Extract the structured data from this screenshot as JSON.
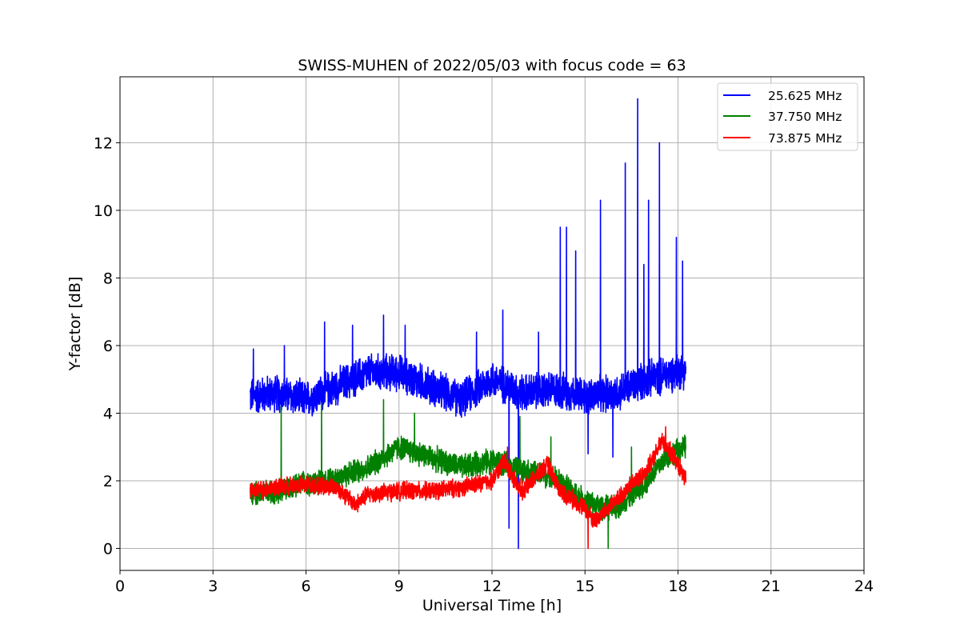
{
  "chart_data": {
    "type": "line",
    "title": "SWISS-MUHEN of 2022/05/03 with focus code = 63",
    "xlabel": "Universal Time [h]",
    "ylabel": "Y-factor [dB]",
    "xlim": [
      0,
      24
    ],
    "ylim": [
      -0.65,
      13.95
    ],
    "xticks": [
      0,
      3,
      6,
      9,
      12,
      15,
      18,
      21,
      24
    ],
    "yticks": [
      0,
      2,
      4,
      6,
      8,
      10,
      12
    ],
    "grid": true,
    "legend_position": "top-right",
    "series": [
      {
        "name": "25.625 MHz",
        "color": "#0000ff",
        "noise_amplitude": 0.45,
        "baseline": [
          [
            4.2,
            4.5
          ],
          [
            5.0,
            4.6
          ],
          [
            6.0,
            4.4
          ],
          [
            7.0,
            4.8
          ],
          [
            8.0,
            5.2
          ],
          [
            9.0,
            5.2
          ],
          [
            10.0,
            4.8
          ],
          [
            11.0,
            4.4
          ],
          [
            12.0,
            5.0
          ],
          [
            13.0,
            4.6
          ],
          [
            14.0,
            4.7
          ],
          [
            15.0,
            4.5
          ],
          [
            16.0,
            4.6
          ],
          [
            17.0,
            5.0
          ],
          [
            18.25,
            5.3
          ]
        ],
        "peaks": [
          [
            4.3,
            5.9
          ],
          [
            5.3,
            6.0
          ],
          [
            6.6,
            6.7
          ],
          [
            7.5,
            6.6
          ],
          [
            8.5,
            6.9
          ],
          [
            9.2,
            6.6
          ],
          [
            11.5,
            6.4
          ],
          [
            12.35,
            7.05
          ],
          [
            12.55,
            0.6
          ],
          [
            12.85,
            0.0
          ],
          [
            13.5,
            6.4
          ],
          [
            14.2,
            9.5
          ],
          [
            14.4,
            9.5
          ],
          [
            14.7,
            8.8
          ],
          [
            15.5,
            10.3
          ],
          [
            15.1,
            2.8
          ],
          [
            15.9,
            2.7
          ],
          [
            16.3,
            11.4
          ],
          [
            16.7,
            13.3
          ],
          [
            16.9,
            8.4
          ],
          [
            17.05,
            10.3
          ],
          [
            17.4,
            12.0
          ],
          [
            17.95,
            9.2
          ],
          [
            18.15,
            8.5
          ]
        ]
      },
      {
        "name": "37.750 MHz",
        "color": "#008000",
        "noise_amplitude": 0.3,
        "baseline": [
          [
            4.2,
            1.6
          ],
          [
            5.0,
            1.7
          ],
          [
            6.0,
            1.9
          ],
          [
            7.0,
            2.1
          ],
          [
            8.0,
            2.4
          ],
          [
            9.0,
            3.0
          ],
          [
            10.0,
            2.7
          ],
          [
            11.0,
            2.4
          ],
          [
            12.0,
            2.6
          ],
          [
            13.0,
            2.3
          ],
          [
            14.0,
            2.1
          ],
          [
            15.0,
            1.4
          ],
          [
            15.6,
            1.2
          ],
          [
            16.0,
            1.2
          ],
          [
            17.0,
            2.0
          ],
          [
            17.6,
            2.7
          ],
          [
            18.25,
            3.0
          ]
        ],
        "peaks": [
          [
            5.2,
            4.2
          ],
          [
            6.5,
            4.3
          ],
          [
            8.5,
            4.4
          ],
          [
            9.5,
            4.0
          ],
          [
            12.9,
            3.9
          ],
          [
            13.9,
            3.3
          ],
          [
            15.75,
            0.0
          ],
          [
            16.5,
            3.0
          ]
        ]
      },
      {
        "name": "73.875 MHz",
        "color": "#ff0000",
        "noise_amplitude": 0.22,
        "baseline": [
          [
            4.2,
            1.7
          ],
          [
            5.0,
            1.8
          ],
          [
            6.0,
            1.9
          ],
          [
            7.0,
            1.8
          ],
          [
            7.6,
            1.3
          ],
          [
            8.0,
            1.6
          ],
          [
            9.0,
            1.7
          ],
          [
            10.0,
            1.7
          ],
          [
            11.0,
            1.8
          ],
          [
            12.0,
            2.0
          ],
          [
            12.4,
            2.6
          ],
          [
            12.8,
            1.9
          ],
          [
            13.0,
            1.7
          ],
          [
            13.8,
            2.5
          ],
          [
            14.2,
            1.7
          ],
          [
            15.0,
            1.2
          ],
          [
            15.3,
            0.8
          ],
          [
            16.0,
            1.4
          ],
          [
            16.5,
            1.9
          ],
          [
            17.0,
            2.3
          ],
          [
            17.5,
            3.2
          ],
          [
            18.0,
            2.5
          ],
          [
            18.25,
            2.0
          ]
        ],
        "peaks": [
          [
            15.1,
            0.0
          ],
          [
            17.6,
            3.6
          ],
          [
            12.5,
            3.0
          ]
        ]
      }
    ]
  }
}
